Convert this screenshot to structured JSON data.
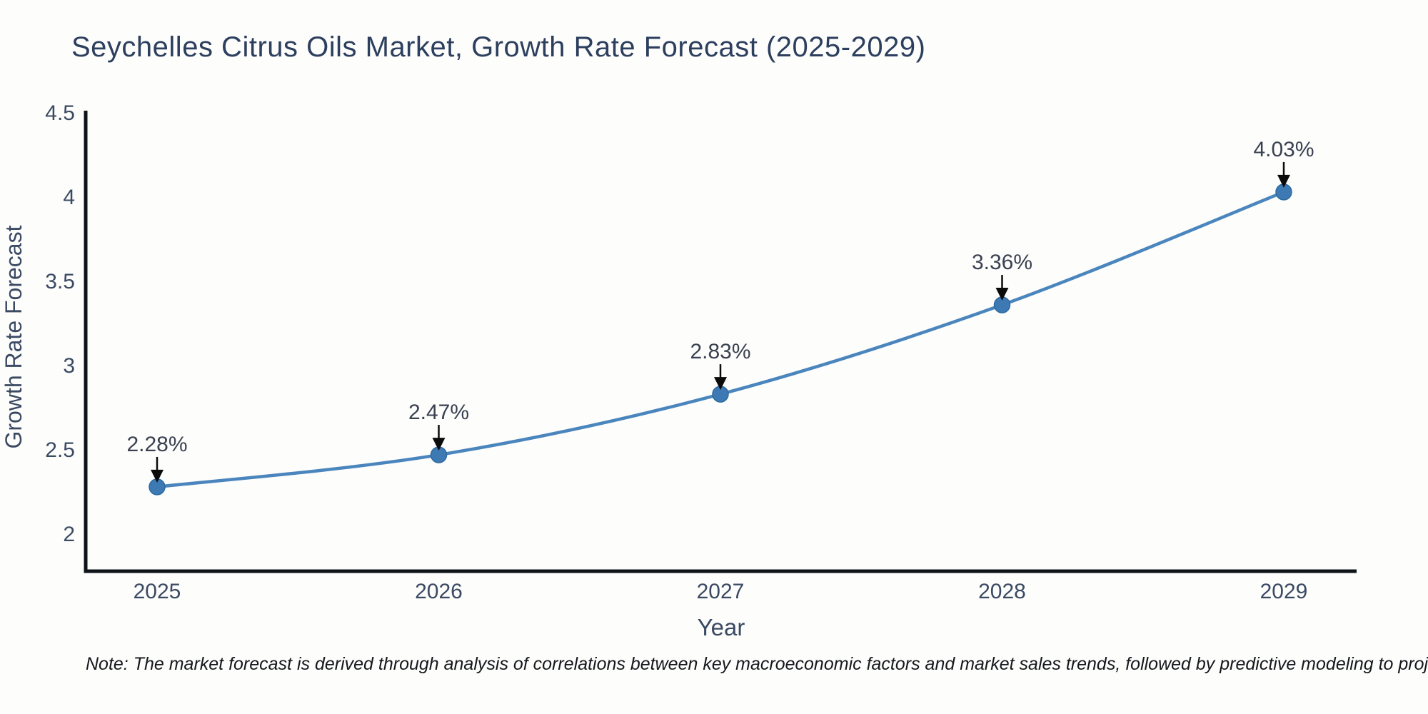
{
  "title": "Seychelles Citrus Oils Market, Growth Rate Forecast (2025-2029)",
  "note": "Note: The market forecast is derived through analysis of correlations between key macroeconomic factors and market sales trends, followed by predictive modeling to project future sales",
  "chart_data": {
    "type": "line",
    "title": "Seychelles Citrus Oils Market, Growth Rate Forecast (2025-2029)",
    "x": [
      2025,
      2026,
      2027,
      2028,
      2029
    ],
    "values": [
      2.28,
      2.47,
      2.83,
      3.36,
      4.03
    ],
    "point_labels": [
      "2.28%",
      "2.47%",
      "2.83%",
      "3.36%",
      "4.03%"
    ],
    "xlabel": "Year",
    "ylabel": "Growth Rate Forecast",
    "xticklabels": [
      "2025",
      "2026",
      "2027",
      "2028",
      "2029"
    ],
    "yticks": [
      2,
      2.5,
      3,
      3.5,
      4,
      4.5
    ],
    "yticklabels": [
      "2",
      "2.5",
      "3",
      "3.5",
      "4",
      "4.5"
    ],
    "ylim": [
      1.78,
      4.5
    ],
    "grid": false,
    "legend_position": "none",
    "colors": {
      "line": "#4a86bd",
      "marker_fill": "#3d7ab4",
      "marker_edge": "#2f699f",
      "axis_spine": "#0f1419",
      "tick_label": "#3b4a63",
      "axis_label": "#3b4a63",
      "annotation_text": "#3a4150",
      "annotation_arrow": "#0b0b0b",
      "title": "#2d3f5e",
      "background": "#fdfdfc"
    }
  }
}
